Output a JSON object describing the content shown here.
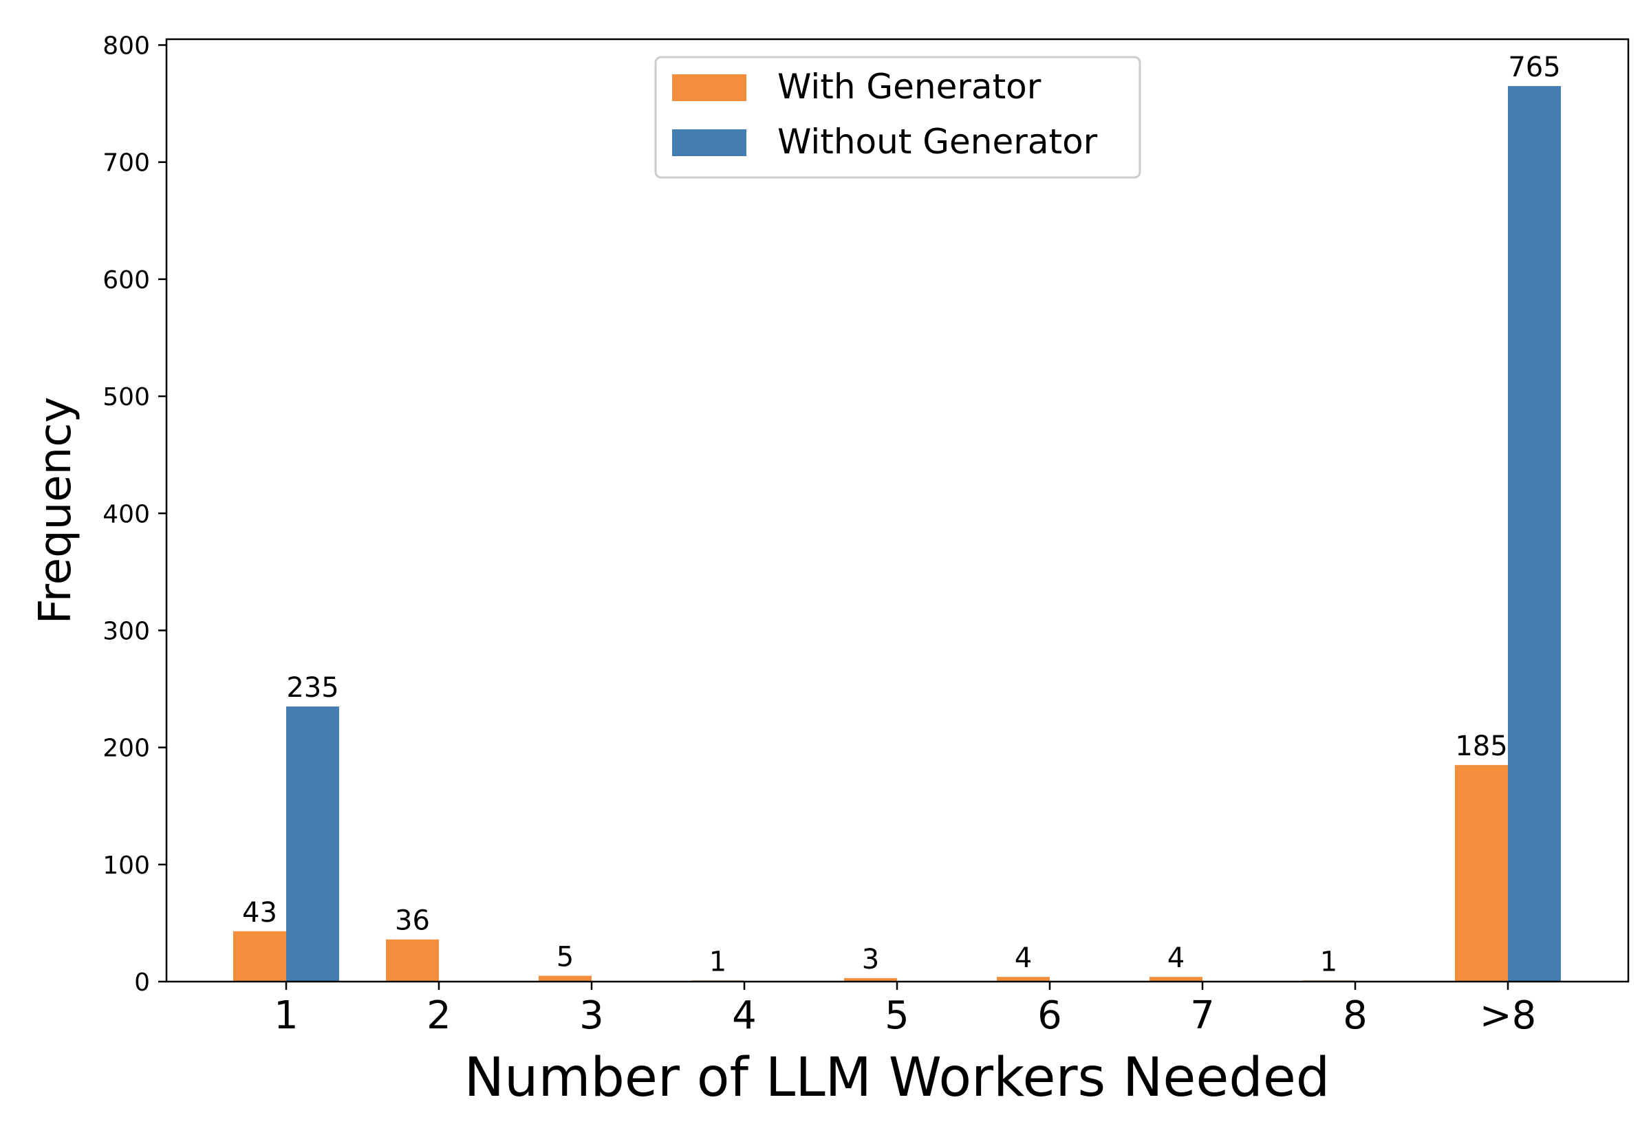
{
  "chart_data": {
    "type": "bar",
    "title": "",
    "xlabel": "Number of LLM Workers Needed",
    "ylabel": "Frequency",
    "categories": [
      "1",
      "2",
      "3",
      "4",
      "5",
      "6",
      "7",
      "8",
      ">8"
    ],
    "series": [
      {
        "name": "With Generator",
        "color": "#F28E3C",
        "values": [
          43,
          36,
          5,
          1,
          3,
          4,
          4,
          1,
          185
        ]
      },
      {
        "name": "Without Generator",
        "color": "#447DB2",
        "values": [
          235,
          0,
          0,
          0,
          0,
          0,
          0,
          0,
          765
        ]
      }
    ],
    "data_labels": [
      [
        "43",
        "36",
        "5",
        "1",
        "3",
        "4",
        "4",
        "1",
        "185"
      ],
      [
        "235",
        null,
        null,
        null,
        null,
        null,
        null,
        null,
        "765"
      ]
    ],
    "ylim": [
      0,
      805
    ],
    "yticks": [
      0,
      100,
      200,
      300,
      400,
      500,
      600,
      700,
      800
    ],
    "grid": false,
    "legend": {
      "placement": "top-center"
    }
  }
}
